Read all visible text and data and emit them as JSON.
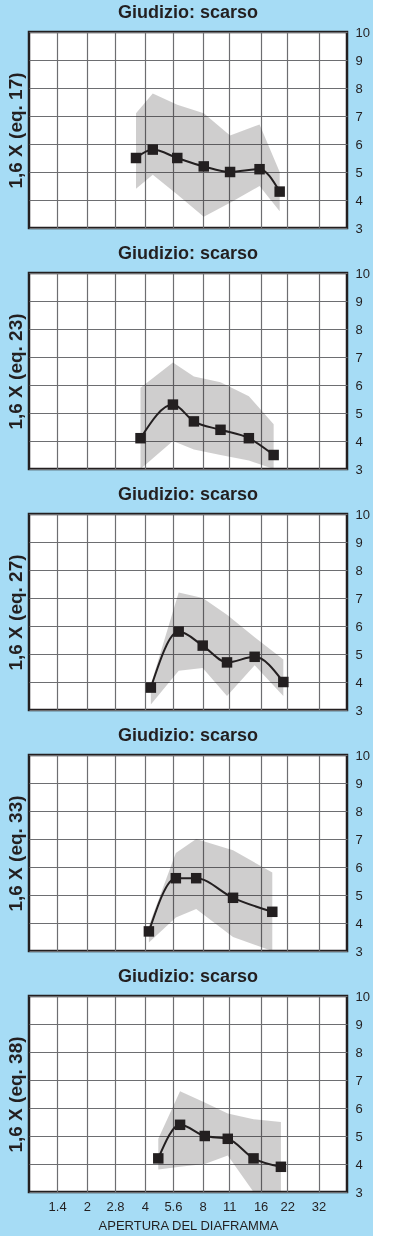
{
  "chart_data": [
    {
      "type": "line",
      "title": "Giudizio: scarso",
      "ylabel": "1,6 X (eq. 17)",
      "log": "x",
      "xlim": [
        1,
        45
      ],
      "xticks": [
        1.4,
        2,
        2.8,
        4,
        5.6,
        8,
        11,
        16,
        22,
        32
      ],
      "ylim": [
        3,
        10
      ],
      "yticks": [
        3,
        4,
        5,
        6,
        7,
        8,
        9,
        10
      ],
      "grid": true,
      "tick_labels": "y",
      "marker": "square",
      "line_style": "solid",
      "legend": false,
      "series": [
        {
          "color": "#231f20",
          "x": [
            3.6,
            4.4,
            5.9,
            8.1,
            11.1,
            15.8,
            20.1
          ],
          "values": [
            5.5,
            5.8,
            5.5,
            5.2,
            5.0,
            5.1,
            4.3
          ],
          "upper": [
            7.1,
            7.8,
            7.4,
            7.1,
            6.3,
            6.7,
            5.0
          ],
          "lower": [
            4.4,
            4.9,
            4.2,
            3.4,
            3.9,
            4.5,
            3.6
          ]
        }
      ]
    },
    {
      "type": "line",
      "title": "Giudizio: scarso",
      "ylabel": "1,6 X (eq. 23)",
      "log": "x",
      "xlim": [
        1,
        45
      ],
      "xticks": [
        1.4,
        2,
        2.8,
        4,
        5.6,
        8,
        11,
        16,
        22,
        32
      ],
      "ylim": [
        3,
        10
      ],
      "yticks": [
        3,
        4,
        5,
        6,
        7,
        8,
        9,
        10
      ],
      "grid": true,
      "tick_labels": "y",
      "marker": "square",
      "line_style": "solid",
      "legend": false,
      "series": [
        {
          "color": "#231f20",
          "x": [
            3.8,
            5.6,
            7.2,
            9.9,
            13.9,
            18.7
          ],
          "values": [
            4.1,
            5.3,
            4.7,
            4.4,
            4.1,
            3.5
          ],
          "upper": [
            5.9,
            6.8,
            6.3,
            6.1,
            5.6,
            4.6
          ],
          "lower": [
            3.0,
            4.0,
            3.7,
            3.5,
            3.3,
            3.0
          ]
        }
      ]
    },
    {
      "type": "line",
      "title": "Giudizio: scarso",
      "ylabel": "1,6 X (eq. 27)",
      "log": "x",
      "xlim": [
        1,
        45
      ],
      "xticks": [
        1.4,
        2,
        2.8,
        4,
        5.6,
        8,
        11,
        16,
        22,
        32
      ],
      "ylim": [
        3,
        10
      ],
      "yticks": [
        3,
        4,
        5,
        6,
        7,
        8,
        9,
        10
      ],
      "grid": true,
      "tick_labels": "y",
      "marker": "square",
      "line_style": "solid",
      "legend": false,
      "series": [
        {
          "color": "#231f20",
          "x": [
            4.3,
            6.0,
            8.0,
            10.7,
            14.9,
            21.0
          ],
          "values": [
            3.8,
            5.8,
            5.3,
            4.7,
            4.9,
            4.0
          ],
          "upper": [
            3.9,
            7.2,
            7.0,
            6.4,
            5.6,
            4.8
          ],
          "lower": [
            3.2,
            4.4,
            4.5,
            3.5,
            4.6,
            3.5
          ]
        }
      ]
    },
    {
      "type": "line",
      "title": "Giudizio: scarso",
      "ylabel": "1,6 X (eq. 33)",
      "log": "x",
      "xlim": [
        1,
        45
      ],
      "xticks": [
        1.4,
        2,
        2.8,
        4,
        5.6,
        8,
        11,
        16,
        22,
        32
      ],
      "ylim": [
        3,
        10
      ],
      "yticks": [
        3,
        4,
        5,
        6,
        7,
        8,
        9,
        10
      ],
      "grid": true,
      "tick_labels": "y",
      "marker": "square",
      "line_style": "solid",
      "legend": false,
      "series": [
        {
          "color": "#231f20",
          "x": [
            4.2,
            5.8,
            7.4,
            11.5,
            18.4
          ],
          "values": [
            3.7,
            5.6,
            5.6,
            4.9,
            4.4
          ],
          "upper": [
            3.9,
            6.5,
            7.0,
            6.6,
            5.8
          ],
          "lower": [
            3.3,
            4.2,
            4.5,
            3.5,
            3.0
          ]
        }
      ]
    },
    {
      "type": "line",
      "title": "Giudizio: scarso",
      "ylabel": "1,6 X (eq. 38)",
      "xlabel": "APERTURA DEL DIAFRAMMA",
      "log": "x",
      "xlim": [
        1,
        45
      ],
      "xticks": [
        1.4,
        2,
        2.8,
        4,
        5.6,
        8,
        11,
        16,
        22,
        32
      ],
      "ylim": [
        3,
        10
      ],
      "yticks": [
        3,
        4,
        5,
        6,
        7,
        8,
        9,
        10
      ],
      "grid": true,
      "marker": "square",
      "line_style": "solid",
      "legend": false,
      "series": [
        {
          "color": "#231f20",
          "x": [
            4.7,
            6.1,
            8.2,
            10.8,
            14.7,
            20.4
          ],
          "values": [
            4.2,
            5.4,
            5.0,
            4.9,
            4.2,
            3.9
          ],
          "upper": [
            4.9,
            6.6,
            6.2,
            5.8,
            5.6,
            5.5
          ],
          "lower": [
            3.8,
            3.9,
            4.0,
            4.3,
            3.0,
            3.0
          ]
        }
      ]
    }
  ]
}
